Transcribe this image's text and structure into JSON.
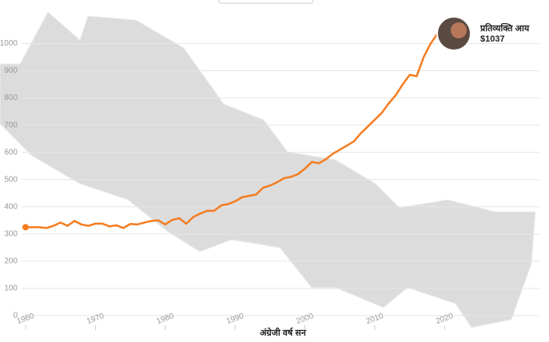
{
  "chart_data": {
    "type": "line",
    "x_label": "अंग्रेजी वर्ष सन",
    "annotation": "प्रतिव्यक्ति आय",
    "x": [
      1960,
      1961,
      1962,
      1963,
      1964,
      1965,
      1966,
      1967,
      1968,
      1969,
      1970,
      1971,
      1972,
      1973,
      1974,
      1975,
      1976,
      1977,
      1978,
      1979,
      1980,
      1981,
      1982,
      1983,
      1984,
      1985,
      1986,
      1987,
      1988,
      1989,
      1990,
      1991,
      1992,
      1993,
      1994,
      1995,
      1996,
      1997,
      1998,
      1999,
      2000,
      2001,
      2002,
      2003,
      2004,
      2005,
      2006,
      2007,
      2008,
      2009,
      2010,
      2011,
      2012,
      2013,
      2014,
      2015,
      2016,
      2017,
      2018,
      2019
    ],
    "series": [
      {
        "color": "#f47c20",
        "values": [
          325,
          325,
          325,
          322,
          330,
          342,
          330,
          348,
          335,
          330,
          338,
          338,
          328,
          332,
          322,
          337,
          335,
          342,
          348,
          350,
          335,
          352,
          358,
          338,
          362,
          375,
          385,
          385,
          405,
          410,
          420,
          435,
          440,
          445,
          470,
          478,
          490,
          505,
          510,
          520,
          540,
          565,
          560,
          575,
          595,
          610,
          625,
          640,
          670,
          695,
          720,
          745,
          780,
          810,
          850,
          885,
          880,
          950,
          1000,
          1037
        ],
        "value_labels": [
          null,
          null,
          null,
          null,
          null,
          null,
          null,
          null,
          null,
          null,
          null,
          null,
          null,
          null,
          null,
          null,
          null,
          null,
          null,
          null,
          null,
          null,
          null,
          null,
          null,
          null,
          null,
          null,
          null,
          null,
          null,
          null,
          null,
          null,
          null,
          null,
          null,
          null,
          null,
          null,
          null,
          null,
          null,
          null,
          null,
          null,
          null,
          null,
          null,
          null,
          null,
          null,
          null,
          null,
          null,
          null,
          null,
          null,
          null,
          "$1037"
        ]
      }
    ],
    "xlim": [
      1960,
      2033
    ],
    "xticks": [
      1960,
      1970,
      1980,
      1990,
      2000,
      2010,
      2020
    ],
    "ylim": [
      0,
      1110
    ],
    "yticks": [
      0,
      100,
      200,
      300,
      400,
      500,
      600,
      700,
      800,
      900,
      1000
    ],
    "grid": true
  }
}
